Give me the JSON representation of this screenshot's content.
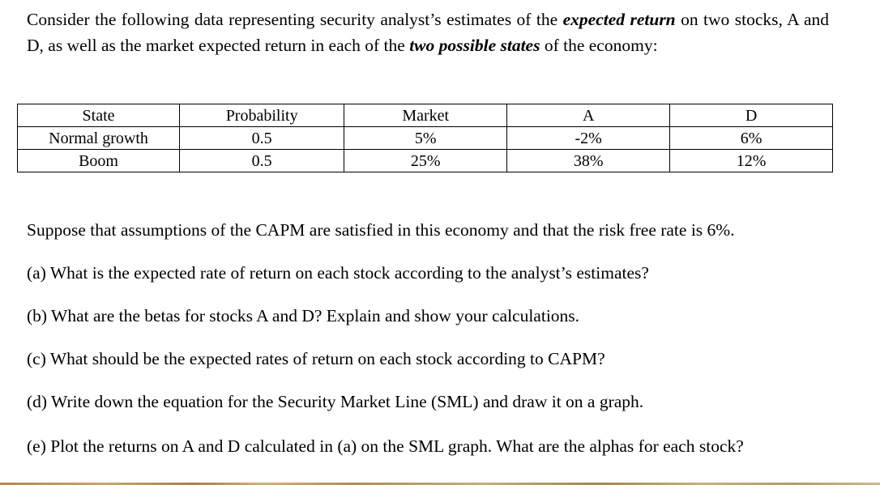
{
  "intro": {
    "part1": "Consider the following data representing security analyst’s estimates of the ",
    "emphasis1": "expected return",
    "part2": " on two stocks, A and D, as well as the market expected return in each of the ",
    "emphasis2": "two possible states",
    "part3": " of the economy:"
  },
  "table": {
    "headers": [
      "State",
      "Probability",
      "Market",
      "A",
      "D"
    ],
    "rows": [
      [
        "Normal growth",
        "0.5",
        "5%",
        "-2%",
        "6%"
      ],
      [
        "Boom",
        "0.5",
        "25%",
        "38%",
        "12%"
      ]
    ]
  },
  "setup": "Suppose that assumptions of the CAPM are satisfied in this economy and that the risk free rate is 6%.",
  "questions": {
    "a": "(a) What is the expected rate of return on each stock according to the analyst’s estimates?",
    "b": "(b) What are the betas for stocks A and D? Explain and show your calculations.",
    "c": "(c) What should be the expected rates of return on each stock according to CAPM?",
    "d": "(d) Write down the equation for the Security Market Line (SML) and draw it on a graph.",
    "e": "(e) Plot the returns on A and D calculated in (a) on the SML graph. What are the alphas for each stock?"
  }
}
